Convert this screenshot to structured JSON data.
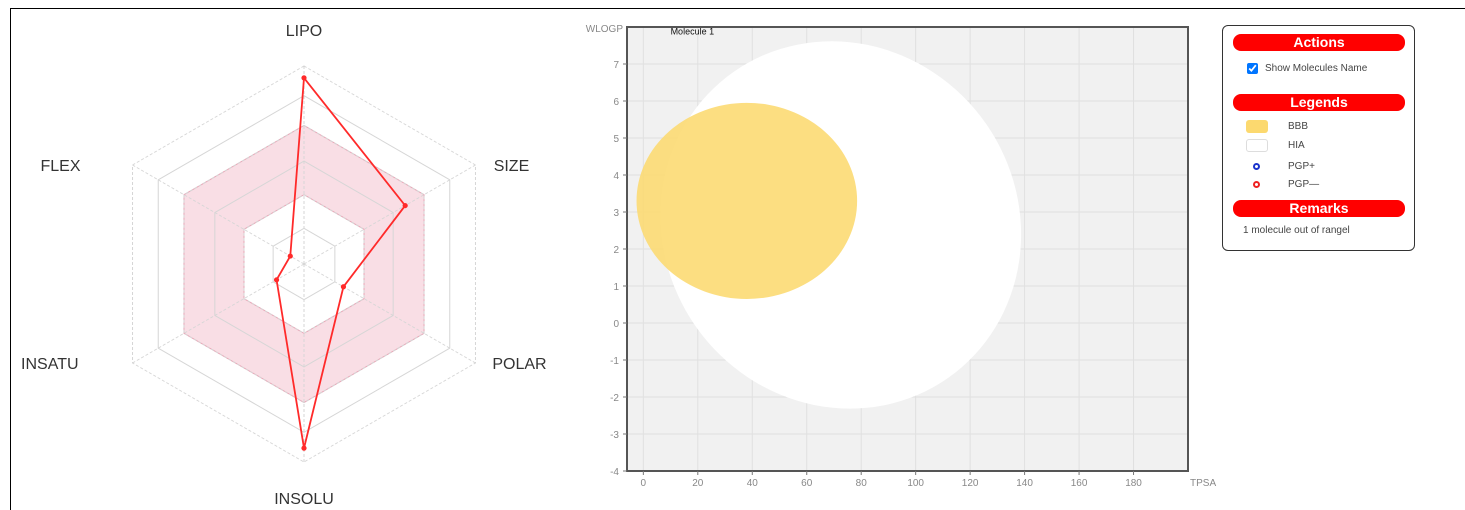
{
  "radar": {
    "axes": [
      "LIPO",
      "SIZE",
      "POLAR",
      "INSOLU",
      "INSATU",
      "FLEX"
    ],
    "range": [
      0,
      1
    ],
    "optimal_band": [
      0.35,
      0.7
    ],
    "molecule_values": [
      0.94,
      0.59,
      0.23,
      0.93,
      0.16,
      0.08
    ],
    "line_color": "#ff2a2a",
    "band_color": "#f4c2cf"
  },
  "chart_data": {
    "type": "scatter",
    "xlabel": "TPSA",
    "ylabel": "WLOGP",
    "xlim": [
      -6,
      200
    ],
    "ylim": [
      -4,
      8
    ],
    "xticks": [
      0,
      20,
      40,
      60,
      80,
      100,
      120,
      140,
      160,
      180
    ],
    "yticks": [
      -4,
      -3,
      -2,
      -1,
      0,
      1,
      2,
      3,
      4,
      5,
      6,
      7
    ],
    "grid": true,
    "regions": [
      {
        "name": "HIA",
        "shape": "ellipse",
        "cx": 72.5,
        "cy": 2.65,
        "rx": 65.0,
        "ry": 5.05,
        "angle_deg": -35,
        "color": "#ffffff"
      },
      {
        "name": "BBB",
        "shape": "ellipse",
        "cx": 38.0,
        "cy": 3.3,
        "rx": 40.5,
        "ry": 2.65,
        "angle_deg": 0,
        "color": "#fcd96f"
      }
    ],
    "annotations": [
      {
        "text": "Molecule 1",
        "x": 10,
        "y": 7.8
      }
    ]
  },
  "panel": {
    "actions_title": "Actions",
    "show_names_label": "Show Molecules Name",
    "show_names_checked": true,
    "legends_title": "Legends",
    "legend_items": [
      {
        "label": "BBB",
        "kind": "swatch",
        "color": "#fcd96f"
      },
      {
        "label": "HIA",
        "kind": "swatch",
        "color": "#ffffff"
      },
      {
        "label": "PGP+",
        "kind": "ring",
        "color": "#1a33cc"
      },
      {
        "label": "PGP—",
        "kind": "ring",
        "color": "#ee2222"
      }
    ],
    "remarks_title": "Remarks",
    "remarks_text": "1 molecule out of rangel"
  },
  "colors": {
    "accent": "#ff0000",
    "plot_bg": "#f1f1f1",
    "plot_border": "#555555"
  }
}
